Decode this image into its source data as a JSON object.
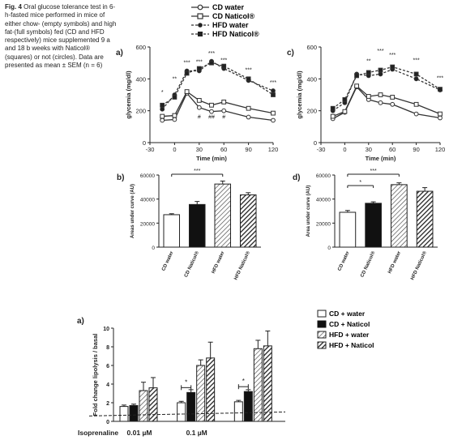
{
  "caption": {
    "label": "Fig. 4",
    "text": "Oral glucose tolerance test in 6-h-fasted mice performed in mice of either chow- (empty symbols) and high fat-(full symbols) fed (CD and HFD respectively) mice supplemented 9 a and 18 b weeks with Naticol® (squares) or not (circles). Data are presented as mean ± SEM (n = 6)"
  },
  "legend_top": [
    "CD water",
    "CD Naticol®",
    "HFD water",
    "HFD Naticol®"
  ],
  "legend_bottom": [
    "CD + water",
    "CD + Naticol",
    "HFD + water",
    "HFD + Naticol"
  ],
  "chart_data": [
    {
      "panel": "a)",
      "type": "line",
      "xlabel": "Time (min)",
      "ylabel": "glycemia (mg/dl)",
      "xlim": [
        -30,
        120
      ],
      "ylim": [
        0,
        600
      ],
      "xticks": [
        -30,
        0,
        30,
        60,
        90,
        120
      ],
      "yticks": [
        0,
        200,
        400,
        600
      ],
      "x": [
        -15,
        0,
        15,
        30,
        45,
        60,
        90,
        120
      ],
      "series": [
        {
          "name": "CD water",
          "values": [
            140,
            145,
            310,
            220,
            195,
            200,
            160,
            140
          ]
        },
        {
          "name": "CD Naticol®",
          "values": [
            165,
            170,
            320,
            265,
            235,
            255,
            215,
            185
          ]
        },
        {
          "name": "HFD water",
          "values": [
            210,
            300,
            450,
            450,
            510,
            465,
            390,
            325
          ]
        },
        {
          "name": "HFD Naticol®",
          "values": [
            235,
            285,
            435,
            465,
            500,
            480,
            400,
            300
          ]
        }
      ],
      "stars": [
        {
          "x": -15,
          "y": 305,
          "text": "*"
        },
        {
          "x": 0,
          "y": 390,
          "text": "**"
        },
        {
          "x": 15,
          "y": 490,
          "text": "***"
        },
        {
          "x": 30,
          "y": 495,
          "text": "***"
        },
        {
          "x": 45,
          "y": 550,
          "text": "***"
        },
        {
          "x": 60,
          "y": 505,
          "text": "***"
        },
        {
          "x": 90,
          "y": 445,
          "text": "***"
        },
        {
          "x": 120,
          "y": 365,
          "text": "***"
        }
      ],
      "hashes": [
        {
          "x": 30,
          "y": 150,
          "text": "#"
        },
        {
          "x": 45,
          "y": 150,
          "text": "##"
        },
        {
          "x": 60,
          "y": 150,
          "text": "#"
        }
      ]
    },
    {
      "panel": "c)",
      "type": "line",
      "xlabel": "Time (min)",
      "ylabel": "glycemia (mg/dl)",
      "xlim": [
        -30,
        120
      ],
      "ylim": [
        0,
        600
      ],
      "xticks": [
        -30,
        0,
        30,
        60,
        90,
        120
      ],
      "yticks": [
        0,
        200,
        400,
        600
      ],
      "x": [
        -15,
        0,
        15,
        30,
        45,
        60,
        90,
        120
      ],
      "series": [
        {
          "name": "CD water",
          "values": [
            150,
            190,
            350,
            270,
            250,
            240,
            180,
            155
          ]
        },
        {
          "name": "CD Naticol®",
          "values": [
            165,
            195,
            355,
            290,
            300,
            285,
            240,
            180
          ]
        },
        {
          "name": "HFD water",
          "values": [
            200,
            250,
            430,
            420,
            430,
            460,
            400,
            330
          ]
        },
        {
          "name": "HFD Naticol®",
          "values": [
            215,
            270,
            420,
            440,
            455,
            475,
            430,
            335
          ]
        }
      ],
      "stars": [
        {
          "x": 30,
          "y": 500,
          "text": "**"
        },
        {
          "x": 45,
          "y": 565,
          "text": "***"
        },
        {
          "x": 60,
          "y": 540,
          "text": "***"
        },
        {
          "x": 90,
          "y": 505,
          "text": "***"
        },
        {
          "x": 120,
          "y": 395,
          "text": "***"
        }
      ]
    },
    {
      "panel": "b)",
      "type": "bar",
      "ylabel": "Areas under curve (AU)",
      "ylim": [
        0,
        60000
      ],
      "yticks": [
        0,
        20000,
        40000,
        60000
      ],
      "categories": [
        "CD water",
        "CD Naticol®",
        "HFD water",
        "HFD Naticol®"
      ],
      "values": [
        27000,
        35500,
        52500,
        43500
      ],
      "errors": [
        800,
        2500,
        2500,
        1800
      ],
      "significance": [
        {
          "from": 0,
          "to": 2,
          "text": "***"
        }
      ]
    },
    {
      "panel": "d)",
      "type": "bar",
      "ylabel": "Area under curve (AU)",
      "ylim": [
        0,
        60000
      ],
      "yticks": [
        0,
        20000,
        40000,
        60000
      ],
      "categories": [
        "CD water",
        "CD Naticol®",
        "HFD water",
        "HFD Naticol®"
      ],
      "values": [
        29000,
        36500,
        52000,
        46500
      ],
      "errors": [
        1500,
        1200,
        1500,
        3000
      ],
      "significance": [
        {
          "from": 0,
          "to": 1,
          "text": "*"
        },
        {
          "from": 0,
          "to": 2,
          "text": "***"
        }
      ]
    },
    {
      "panel": "a)",
      "type": "bar",
      "ylabel": "Fold change lipolysis / basal",
      "ylim": [
        0,
        10
      ],
      "yticks": [
        0,
        2,
        4,
        6,
        8,
        10
      ],
      "xlabel": "Isoprenaline",
      "group_labels": [
        "0.01 µM",
        "0.1 µM",
        ""
      ],
      "series": [
        {
          "name": "CD + water",
          "values": [
            1.6,
            2.0,
            2.1
          ],
          "errors": [
            0.15,
            0.15,
            0.15
          ]
        },
        {
          "name": "CD + Naticol",
          "values": [
            1.7,
            3.1,
            3.2
          ],
          "errors": [
            0.15,
            0.3,
            0.2
          ]
        },
        {
          "name": "HFD + water",
          "values": [
            3.3,
            6.0,
            7.8
          ],
          "errors": [
            0.9,
            0.6,
            0.9
          ]
        },
        {
          "name": "HFD + Naticol",
          "values": [
            3.6,
            6.8,
            8.1
          ],
          "errors": [
            1.1,
            1.7,
            1.6
          ]
        }
      ],
      "dashed_reference": 0.75,
      "significance": [
        {
          "group": 1,
          "text": "*"
        },
        {
          "group": 2,
          "text": "*"
        }
      ]
    }
  ]
}
